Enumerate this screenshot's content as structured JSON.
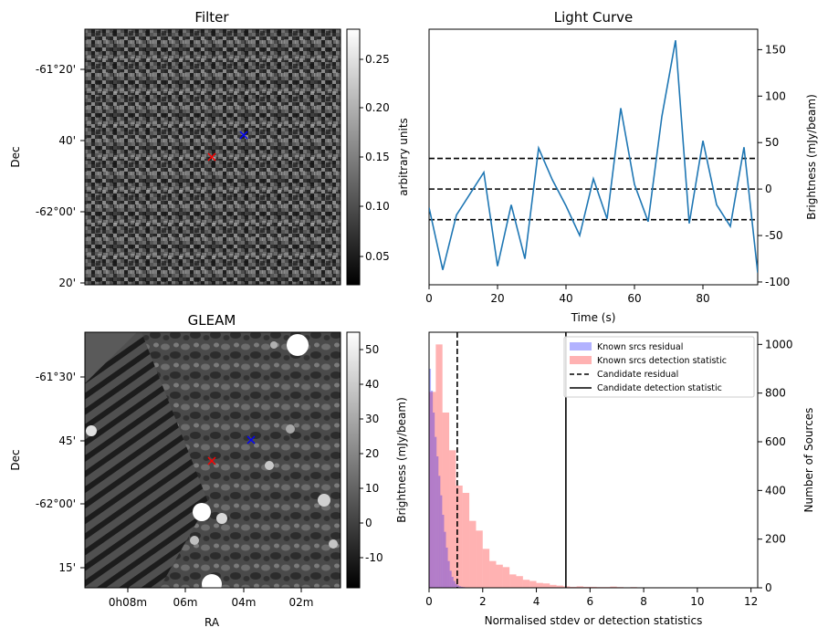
{
  "chart_data": [
    {
      "panel": "filter",
      "type": "heatmap",
      "title": "Filter",
      "ylabel": "Dec",
      "yticks": [
        "-61°20'",
        "40'",
        "-62°00'",
        "20'"
      ],
      "colorbar": {
        "label": "arbitrary units",
        "range": [
          0.02,
          0.28
        ],
        "ticks": [
          "0.25",
          "0.20",
          "0.15",
          "0.10",
          "0.05"
        ],
        "cmap": "gray"
      },
      "markers": [
        {
          "name": "candidate",
          "symbol": "x",
          "color": "#ff0000"
        },
        {
          "name": "reference",
          "symbol": "x",
          "color": "#0000ff"
        }
      ]
    },
    {
      "panel": "lightcurve",
      "type": "line",
      "title": "Light Curve",
      "xlabel": "Time (s)",
      "ylabel": "Brightness (mJy/beam)",
      "xlim": [
        0,
        96
      ],
      "ylim": [
        -103,
        172
      ],
      "xticks": [
        "0",
        "20",
        "40",
        "60",
        "80"
      ],
      "yticks": [
        "150",
        "100",
        "50",
        "0",
        "-50",
        "-100"
      ],
      "series_color": "#1f77b4",
      "x": [
        0,
        4,
        8,
        12,
        16,
        20,
        24,
        28,
        32,
        36,
        40,
        44,
        48,
        52,
        56,
        60,
        64,
        68,
        72,
        76,
        80,
        84,
        88,
        92,
        96
      ],
      "y": [
        -20,
        -87,
        -28,
        -5,
        18,
        -83,
        -17,
        -75,
        44,
        10,
        -18,
        -50,
        11,
        -32,
        87,
        5,
        -35,
        78,
        160,
        -37,
        52,
        -17,
        -40,
        45,
        -90
      ],
      "hlines": [
        33,
        0,
        -33
      ]
    },
    {
      "panel": "gleam",
      "type": "heatmap",
      "title": "GLEAM",
      "xlabel": "RA",
      "ylabel": "Dec",
      "xticks": [
        "0h08m",
        "06m",
        "04m",
        "02m"
      ],
      "yticks": [
        "-61°30'",
        "45'",
        "-62°00'",
        "15'"
      ],
      "colorbar": {
        "label": "Brightness (mJy/beam)",
        "range": [
          -18,
          55
        ],
        "ticks": [
          "50",
          "40",
          "30",
          "20",
          "10",
          "0",
          "-10"
        ],
        "cmap": "gray"
      },
      "markers": [
        {
          "name": "candidate",
          "symbol": "x",
          "color": "#ff0000"
        },
        {
          "name": "reference",
          "symbol": "x",
          "color": "#0000ff"
        }
      ]
    },
    {
      "panel": "histogram",
      "type": "bar",
      "xlabel": "Normalised stdev or detection statistics",
      "ylabel": "Number of Sources",
      "xlim": [
        0,
        12.25
      ],
      "ylim": [
        0,
        1050
      ],
      "xticks": [
        "0",
        "2",
        "4",
        "6",
        "8",
        "10",
        "12"
      ],
      "yticks": [
        "1000",
        "800",
        "600",
        "400",
        "200",
        "0"
      ],
      "legend": "top-right",
      "bin_width": 0.25,
      "series": [
        {
          "name": "Known srcs residual",
          "color": "#0000ff",
          "alpha": 0.3,
          "bin_width": 0.07,
          "start": 0,
          "values": [
            900,
            810,
            720,
            620,
            540,
            460,
            380,
            300,
            230,
            165,
            110,
            70,
            45,
            28,
            16,
            10,
            6,
            4,
            3,
            2
          ]
        },
        {
          "name": "Known srcs detection statistic",
          "color": "#ff0000",
          "alpha": 0.3,
          "start": 0,
          "values": [
            805,
            1000,
            720,
            565,
            420,
            390,
            275,
            235,
            160,
            110,
            95,
            85,
            55,
            48,
            33,
            28,
            20,
            18,
            12,
            9,
            6,
            4,
            6,
            4,
            4,
            3,
            3,
            5,
            3,
            2,
            3,
            2,
            2,
            2,
            2,
            1,
            2,
            2,
            1,
            1,
            1,
            1,
            1,
            1,
            1,
            1,
            1,
            1
          ]
        }
      ],
      "vlines": [
        {
          "name": "Candidate residual",
          "x": 1.05,
          "style": "dashed"
        },
        {
          "name": "Candidate detection statistic",
          "x": 5.1,
          "style": "solid"
        }
      ]
    }
  ]
}
